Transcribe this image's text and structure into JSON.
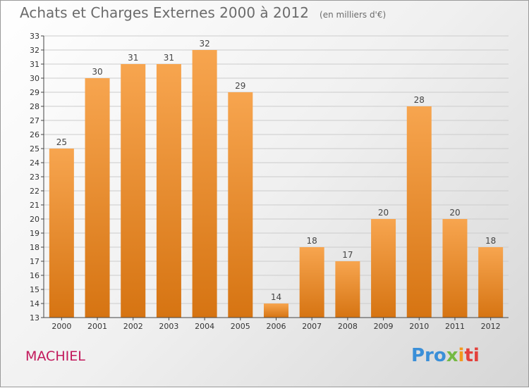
{
  "header": {
    "title": "Achats et Charges Externes 2000 à 2012",
    "subtitle": "(en milliers d'€)"
  },
  "footer": {
    "commune": "MACHIEL",
    "logo_parts": [
      "Pro",
      "x",
      "i",
      "ti"
    ]
  },
  "colors": {
    "bar_top": "#f7a54f",
    "bar_bottom": "#d67412",
    "grid": "#cccccc",
    "title_text": "#6b6b6b",
    "commune_text": "#c2185b"
  },
  "chart_data": {
    "type": "bar",
    "categories": [
      "2000",
      "2001",
      "2002",
      "2003",
      "2004",
      "2005",
      "2006",
      "2007",
      "2008",
      "2009",
      "2010",
      "2011",
      "2012"
    ],
    "values": [
      25,
      30,
      31,
      31,
      32,
      29,
      14,
      18,
      17,
      20,
      28,
      20,
      18
    ],
    "ylim": [
      13,
      33
    ],
    "yticks": [
      13,
      14,
      15,
      16,
      17,
      18,
      19,
      20,
      21,
      22,
      23,
      24,
      25,
      26,
      27,
      28,
      29,
      30,
      31,
      32,
      33
    ],
    "grid": true,
    "data_labels": true
  }
}
